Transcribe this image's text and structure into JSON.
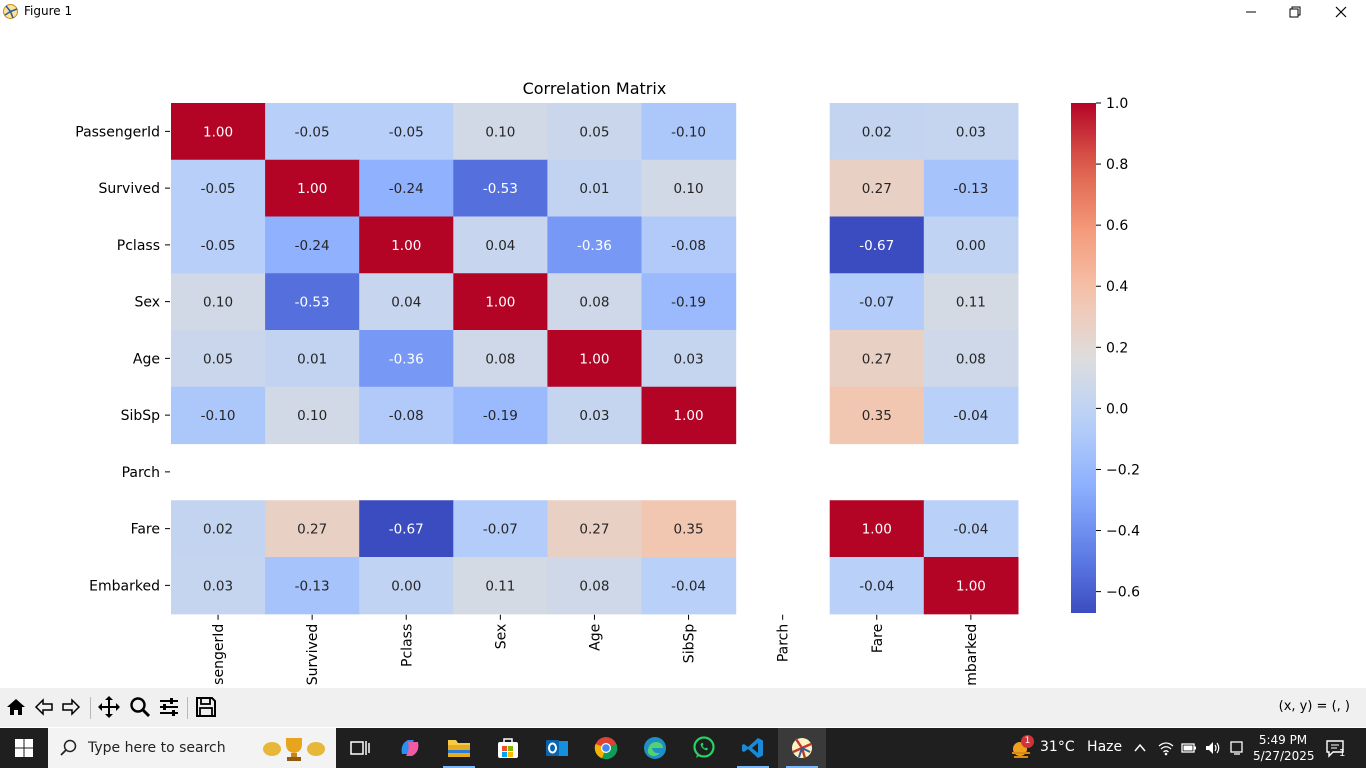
{
  "window": {
    "title": "Figure 1"
  },
  "toolbar": {
    "buttons": [
      "home-icon",
      "back-icon",
      "forward-icon",
      "pan-icon",
      "zoom-icon",
      "configure-subplots-icon",
      "save-icon"
    ],
    "coord_readout": "(x, y) = (, )"
  },
  "chart_data": {
    "type": "heatmap",
    "title": "Correlation Matrix",
    "rows": [
      "PassengerId",
      "Survived",
      "Pclass",
      "Sex",
      "Age",
      "SibSp",
      "Parch",
      "Fare",
      "Embarked"
    ],
    "columns": [
      "PassengerId",
      "Survived",
      "Pclass",
      "Sex",
      "Age",
      "SibSp",
      "Parch",
      "Fare",
      "Embarked"
    ],
    "column_tick_labels_visible": [
      "sengerId",
      "Survived",
      "Pclass",
      "Sex",
      "Age",
      "SibSp",
      "Parch",
      "Fare",
      "mbarked"
    ],
    "values": [
      [
        1.0,
        -0.05,
        -0.05,
        0.1,
        0.05,
        -0.1,
        null,
        0.02,
        0.03
      ],
      [
        -0.05,
        1.0,
        -0.24,
        -0.53,
        0.01,
        0.1,
        null,
        0.27,
        -0.13
      ],
      [
        -0.05,
        -0.24,
        1.0,
        0.04,
        -0.36,
        -0.08,
        null,
        -0.67,
        -0.0
      ],
      [
        0.1,
        -0.53,
        0.04,
        1.0,
        0.08,
        -0.19,
        null,
        -0.07,
        0.11
      ],
      [
        0.05,
        0.01,
        -0.36,
        0.08,
        1.0,
        0.03,
        null,
        0.27,
        0.08
      ],
      [
        -0.1,
        0.1,
        -0.08,
        -0.19,
        0.03,
        1.0,
        null,
        0.35,
        -0.04
      ],
      [
        null,
        null,
        null,
        null,
        null,
        null,
        null,
        null,
        null
      ],
      [
        0.02,
        0.27,
        -0.67,
        -0.07,
        0.27,
        0.35,
        null,
        1.0,
        -0.04
      ],
      [
        0.03,
        -0.13,
        -0.0,
        0.11,
        0.08,
        -0.04,
        null,
        -0.04,
        1.0
      ]
    ],
    "annotation_format": "0.00",
    "colormap": "coolwarm",
    "vmin": -0.67,
    "vmax": 1.0,
    "colorbar_ticks": [
      1.0,
      0.8,
      0.6,
      0.4,
      0.2,
      0.0,
      -0.2,
      -0.4,
      -0.6
    ],
    "colorbar_tick_labels": [
      "1.0",
      "0.8",
      "0.6",
      "0.4",
      "0.2",
      "0.0",
      "−0.2",
      "−0.4",
      "−0.6"
    ],
    "colorbar_position": "right"
  },
  "taskbar": {
    "search_placeholder": "Type here to search",
    "weather_temp": "31°C",
    "weather_desc": "Haze",
    "weather_badge": "1",
    "time": "5:49 PM",
    "date": "5/27/2025",
    "notification_count": "1"
  }
}
